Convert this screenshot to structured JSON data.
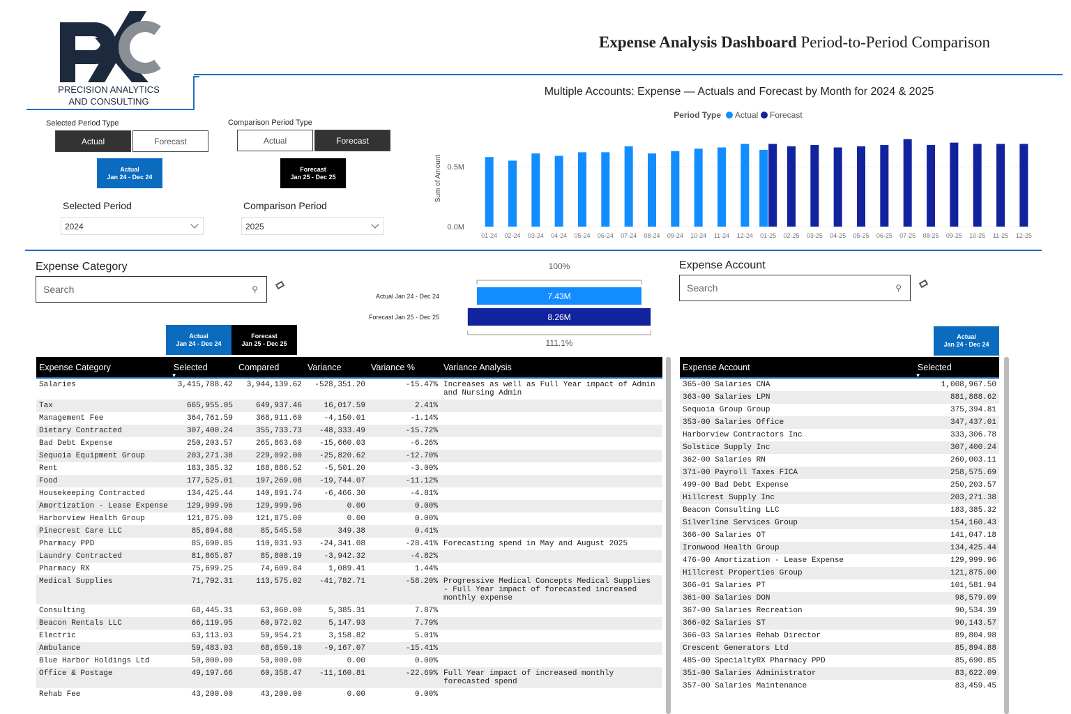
{
  "logo": {
    "line1": "PRECISION ANALYTICS",
    "line2": "AND CONSULTING"
  },
  "header": {
    "title": "Expense Analysis Dashboard",
    "subtitle": "Period-to-Period Comparison"
  },
  "selected_period_type": {
    "label": "Selected Period Type",
    "options": [
      "Actual",
      "Forecast"
    ],
    "card_title": "Actual",
    "card_range": "Jan 24 - Dec 24"
  },
  "comparison_period_type": {
    "label": "Comparison Period Type",
    "options": [
      "Actual",
      "Forecast"
    ],
    "card_title": "Forecast",
    "card_range": "Jan 25 - Dec 25"
  },
  "selected_period": {
    "label": "Selected Period",
    "value": "2024"
  },
  "comparison_period": {
    "label": "Comparison Period",
    "value": "2025"
  },
  "chart_data": {
    "type": "bar",
    "title": "Multiple Accounts: Expense — Actuals and Forecast by Month for 2024 & 2025",
    "legend_title": "Period Type",
    "y_label": "Sum of Amount",
    "categories": [
      "01-24",
      "02-24",
      "03-24",
      "04-24",
      "05-24",
      "06-24",
      "07-24",
      "08-24",
      "09-24",
      "10-24",
      "11-24",
      "12-24",
      "01-25",
      "02-25",
      "03-25",
      "04-25",
      "05-25",
      "06-25",
      "07-25",
      "08-25",
      "09-25",
      "10-25",
      "11-25",
      "12-25"
    ],
    "series": [
      {
        "name": "Actual",
        "color": "#118dff",
        "values": [
          0.58,
          0.55,
          0.61,
          0.59,
          0.62,
          0.62,
          0.67,
          0.61,
          0.63,
          0.65,
          0.66,
          0.69,
          0.64,
          null,
          null,
          null,
          null,
          null,
          null,
          null,
          null,
          null,
          null,
          null
        ]
      },
      {
        "name": "Forecast",
        "color": "#12239e",
        "values": [
          null,
          null,
          null,
          null,
          null,
          null,
          null,
          null,
          null,
          null,
          null,
          null,
          0.69,
          0.67,
          0.68,
          0.66,
          0.67,
          0.68,
          0.73,
          0.68,
          0.7,
          0.69,
          0.69,
          0.69
        ]
      }
    ],
    "ylim": [
      0,
      0.8
    ],
    "yticks": [
      {
        "value": 0,
        "label": "0.0M"
      },
      {
        "value": 0.5,
        "label": "0.5M"
      }
    ],
    "grid": true,
    "legend": "top"
  },
  "category_filter": {
    "title": "Expense Category",
    "placeholder": "Search"
  },
  "account_filter": {
    "title": "Expense Account",
    "placeholder": "Search"
  },
  "comparison": {
    "top_label": "100%",
    "bottom_label": "111.1%",
    "rows": [
      {
        "label": "Actual Jan 24 - Dec 24",
        "value": 7.43,
        "value_label": "7.43M",
        "color": "#118dff"
      },
      {
        "label": "Forecast Jan 25 - Dec 25",
        "value": 8.26,
        "value_label": "8.26M",
        "color": "#12239e"
      }
    ]
  },
  "category_cards": [
    {
      "title": "Actual",
      "range": "Jan 24 - Dec 24"
    },
    {
      "title": "Forecast",
      "range": "Jan 25 - Dec 25"
    }
  ],
  "account_card": {
    "title": "Actual",
    "range": "Jan 24 - Dec 24"
  },
  "category_table": {
    "columns": [
      "Expense Category",
      "Selected",
      "Compared",
      "Variance",
      "Variance %",
      "Variance Analysis"
    ],
    "rows": [
      [
        "Salaries",
        "3,415,788.42",
        "3,944,139.62",
        "-528,351.20",
        "-15.47%",
        "Increases as well as Full Year impact of Admin and Nursing Admin"
      ],
      [
        "Tax",
        "665,955.05",
        "649,937.46",
        "16,017.59",
        "2.41%"
      ],
      [
        "Management Fee",
        "364,761.59",
        "368,911.60",
        "-4,150.01",
        "-1.14%"
      ],
      [
        "Dietary Contracted",
        "307,400.24",
        "355,733.73",
        "-48,333.49",
        "-15.72%"
      ],
      [
        "Bad Debt Expense",
        "250,203.57",
        "265,863.60",
        "-15,660.03",
        "-6.26%"
      ],
      [
        "Sequoia Equipment Group",
        "203,271.38",
        "229,092.00",
        "-25,820.62",
        "-12.70%"
      ],
      [
        "Rent",
        "183,385.32",
        "188,886.52",
        "-5,501.20",
        "-3.00%"
      ],
      [
        "Food",
        "177,525.01",
        "197,269.08",
        "-19,744.07",
        "-11.12%"
      ],
      [
        "Housekeeping Contracted",
        "134,425.44",
        "140,891.74",
        "-6,466.30",
        "-4.81%"
      ],
      [
        "Amortization - Lease Expense",
        "129,999.96",
        "129,999.96",
        "0.00",
        "0.00%"
      ],
      [
        "Harborview Health Group",
        "121,875.00",
        "121,875.00",
        "0.00",
        "0.00%"
      ],
      [
        "Pinecrest Care LLC",
        "85,894.88",
        "85,545.50",
        "349.38",
        "0.41%"
      ],
      [
        "Pharmacy PPD",
        "85,690.85",
        "110,031.93",
        "-24,341.08",
        "-28.41%",
        "Forecasting spend in May and August 2025"
      ],
      [
        "Laundry Contracted",
        "81,865.87",
        "85,808.19",
        "-3,942.32",
        "-4.82%"
      ],
      [
        "Pharmacy RX",
        "75,699.25",
        "74,609.84",
        "1,089.41",
        "1.44%"
      ],
      [
        "Medical Supplies",
        "71,792.31",
        "113,575.02",
        "-41,782.71",
        "-58.20%",
        "Progressive Medical Concepts Medical Supplies - Full Year impact of forecasted increased monthly expense"
      ],
      [
        "Consulting",
        "68,445.31",
        "63,060.00",
        "5,385.31",
        "7.87%"
      ],
      [
        "Beacon Rentals LLC",
        "66,119.95",
        "60,972.02",
        "5,147.93",
        "7.79%"
      ],
      [
        "Electric",
        "63,113.03",
        "59,954.21",
        "3,158.82",
        "5.01%"
      ],
      [
        "Ambulance",
        "59,483.03",
        "68,650.10",
        "-9,167.07",
        "-15.41%"
      ],
      [
        "Blue Harbor Holdings Ltd",
        "50,000.00",
        "50,000.00",
        "0.00",
        "0.00%"
      ],
      [
        "Office & Postage",
        "49,197.66",
        "60,358.47",
        "-11,160.81",
        "-22.69%",
        "Full Year impact of increased monthly forecasted spend"
      ],
      [
        "Rehab Fee",
        "43,200.00",
        "43,200.00",
        "0.00",
        "0.00%"
      ]
    ]
  },
  "account_table": {
    "columns": [
      "Expense Account",
      "Selected"
    ],
    "rows": [
      [
        "365-00 Salaries CNA",
        "1,008,967.50"
      ],
      [
        "363-00 Salaries LPN",
        "881,888.62"
      ],
      [
        "Sequoia Group Group",
        "375,394.81"
      ],
      [
        "353-00 Salaries Office",
        "347,437.01"
      ],
      [
        "Harborview Contractors Inc",
        "333,306.78"
      ],
      [
        "Solstice Supply Inc",
        "307,400.24"
      ],
      [
        "362-00 Salaries RN",
        "260,003.11"
      ],
      [
        "371-00 Payroll Taxes FICA",
        "258,575.69"
      ],
      [
        "499-00 Bad Debt Expense",
        "250,203.57"
      ],
      [
        "Hillcrest Supply Inc",
        "203,271.38"
      ],
      [
        "Beacon Consulting LLC",
        "183,385.32"
      ],
      [
        "Silverline Services Group",
        "154,160.43"
      ],
      [
        "366-00 Salaries OT",
        "141,047.18"
      ],
      [
        "Ironwood Health Group",
        "134,425.44"
      ],
      [
        "476-00 Amortization - Lease Expense",
        "129,999.96"
      ],
      [
        "Hillcrest Properties Group",
        "121,875.00"
      ],
      [
        "366-01 Salaries PT",
        "101,581.94"
      ],
      [
        "361-00 Salaries DON",
        "98,579.09"
      ],
      [
        "367-00 Salaries Recreation",
        "90,534.39"
      ],
      [
        "366-02 Salaries ST",
        "90,143.57"
      ],
      [
        "366-03 Salaries Rehab Director",
        "89,804.98"
      ],
      [
        "Crescent Generators Ltd",
        "85,894.88"
      ],
      [
        "485-00 SpecialtyRX Pharmacy PPD",
        "85,690.85"
      ],
      [
        "351-00 Salaries Administrator",
        "83,622.09"
      ],
      [
        "357-00 Salaries Maintenance",
        "83,459.45"
      ]
    ]
  }
}
